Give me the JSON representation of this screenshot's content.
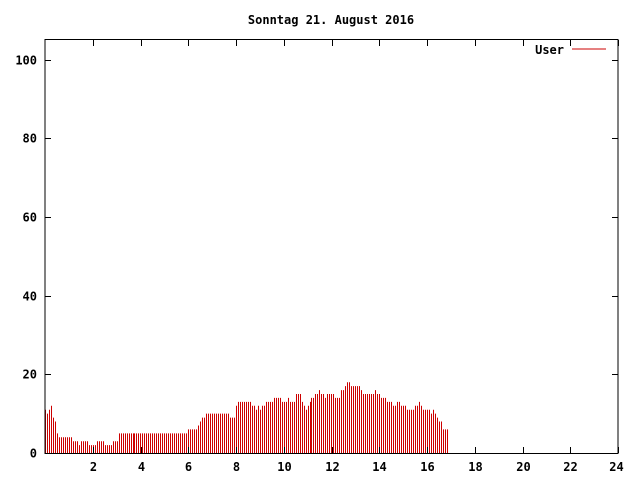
{
  "chart_data": {
    "type": "bar",
    "title": "Sonntag 21. August 2016",
    "xlabel": "",
    "ylabel": "",
    "xlim": [
      0,
      24
    ],
    "ylim": [
      0,
      105
    ],
    "x_ticks": [
      2,
      4,
      6,
      8,
      10,
      12,
      14,
      16,
      18,
      20,
      22,
      24
    ],
    "y_ticks": [
      0,
      20,
      40,
      60,
      80,
      100
    ],
    "grid": false,
    "legend": {
      "position": "top-right"
    },
    "series": [
      {
        "name": "User",
        "color": "#cc0000",
        "step_hours": 0.0833,
        "values": [
          11,
          10,
          11,
          12,
          9,
          8,
          5,
          4,
          4,
          4,
          4,
          4,
          4,
          4,
          3,
          3,
          3,
          2,
          3,
          3,
          3,
          3,
          2,
          2,
          2,
          2,
          3,
          3,
          3,
          3,
          2,
          2,
          2,
          2,
          3,
          3,
          3,
          5,
          5,
          5,
          5,
          5,
          5,
          5,
          5,
          5,
          5,
          5,
          5,
          5,
          5,
          5,
          5,
          5,
          5,
          5,
          5,
          5,
          5,
          5,
          5,
          5,
          5,
          5,
          5,
          5,
          5,
          5,
          5,
          5,
          5,
          5,
          6,
          6,
          6,
          6,
          6,
          7,
          8,
          9,
          9,
          10,
          10,
          10,
          10,
          10,
          10,
          10,
          10,
          10,
          10,
          10,
          10,
          9,
          9,
          9,
          12,
          13,
          13,
          13,
          13,
          13,
          13,
          13,
          12,
          12,
          11,
          12,
          11,
          12,
          12,
          13,
          13,
          13,
          13,
          14,
          14,
          14,
          14,
          13,
          13,
          13,
          14,
          13,
          13,
          13,
          15,
          15,
          15,
          13,
          12,
          11,
          12,
          13,
          14,
          14,
          15,
          15,
          16,
          15,
          15,
          14,
          15,
          15,
          15,
          15,
          14,
          14,
          14,
          16,
          16,
          17,
          18,
          18,
          17,
          17,
          17,
          17,
          17,
          16,
          15,
          15,
          15,
          15,
          15,
          15,
          16,
          15,
          15,
          14,
          14,
          14,
          13,
          13,
          13,
          12,
          12,
          13,
          13,
          12,
          12,
          12,
          11,
          11,
          11,
          11,
          12,
          12,
          13,
          12,
          11,
          11,
          11,
          11,
          10,
          11,
          10,
          9,
          8,
          8,
          6,
          6,
          6
        ]
      }
    ]
  }
}
